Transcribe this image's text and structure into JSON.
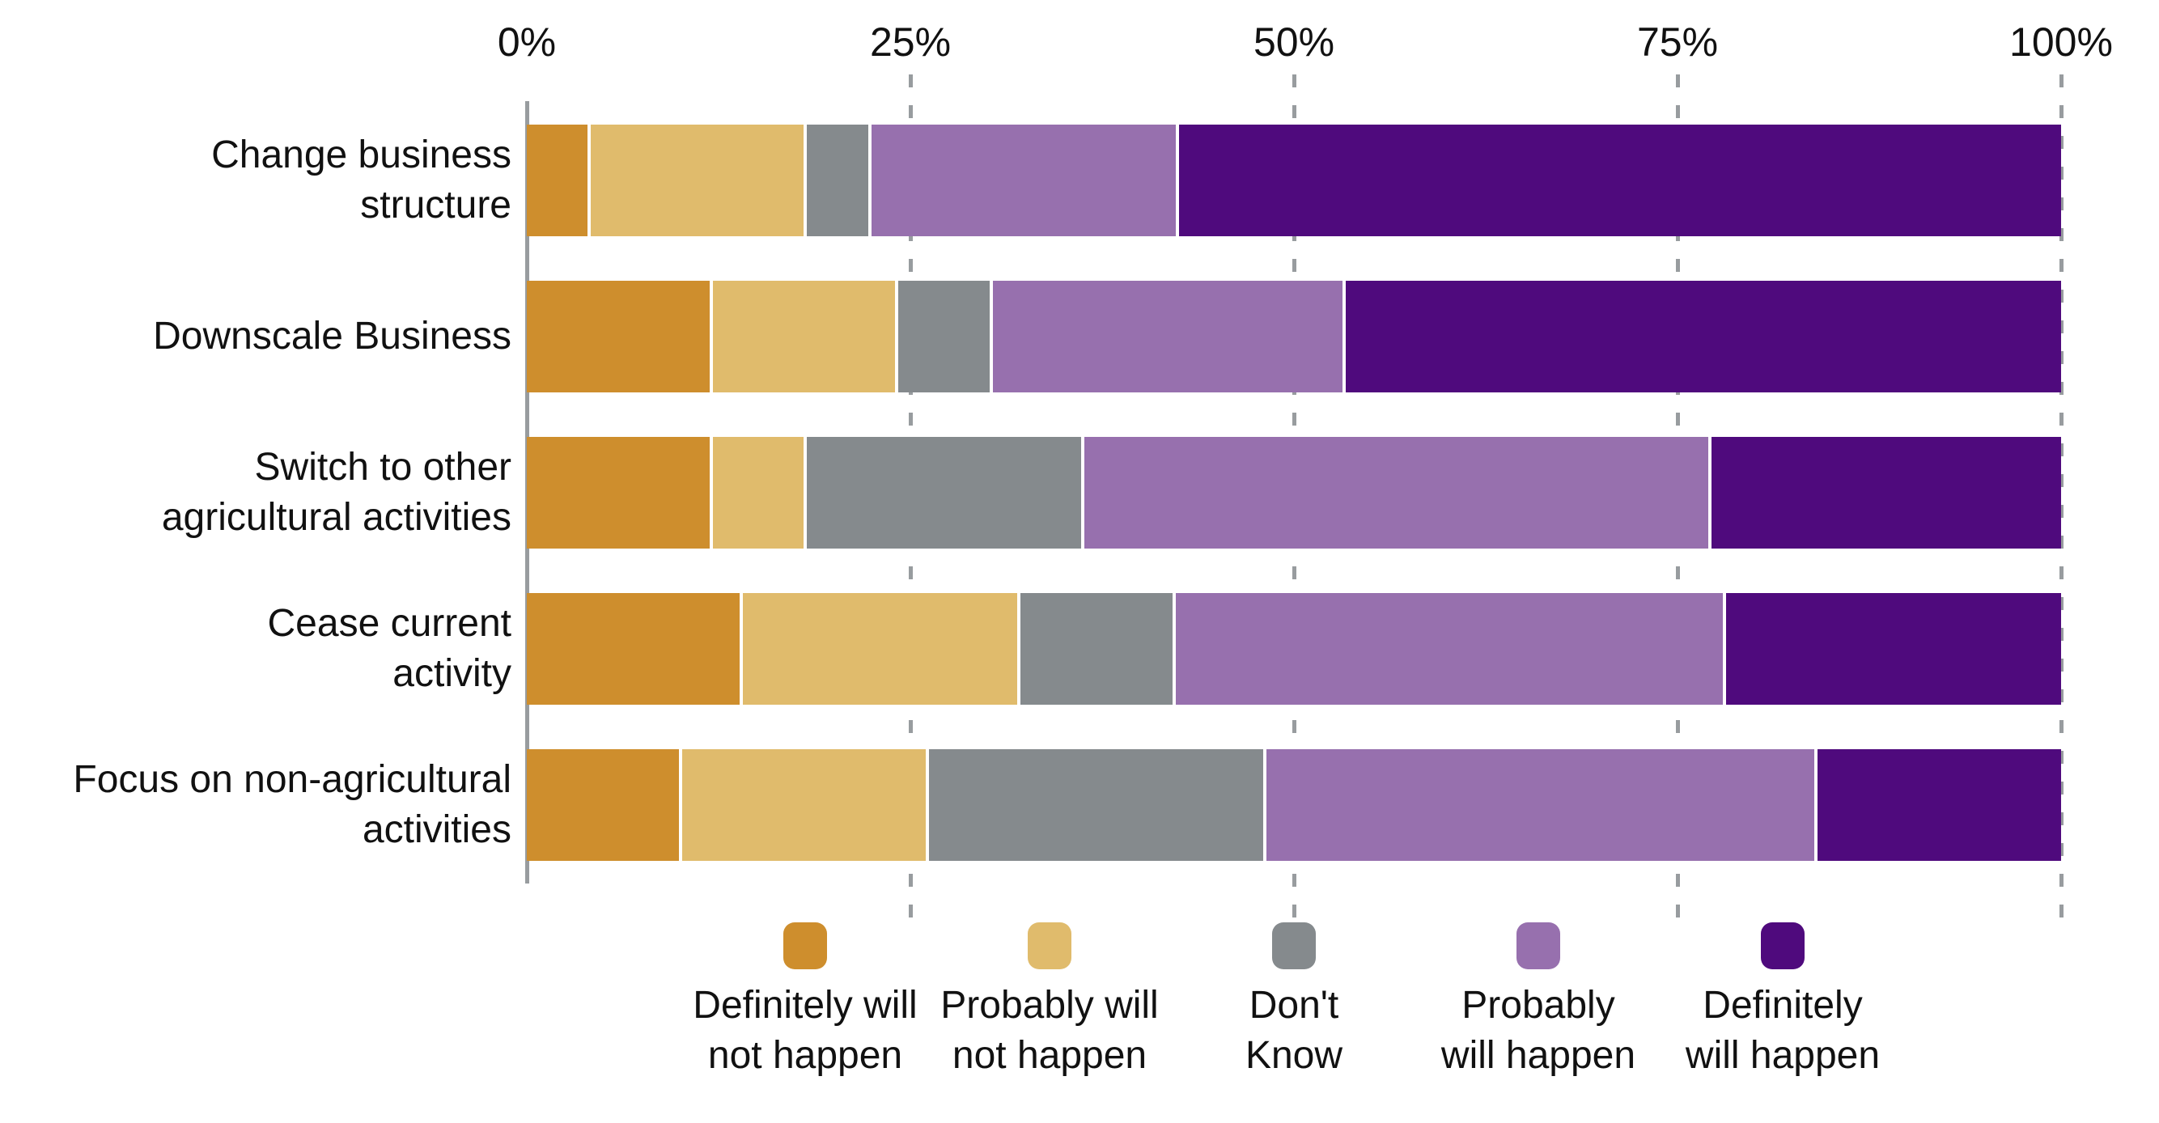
{
  "chart_data": {
    "type": "bar",
    "variant": "horizontal-stacked-100pct",
    "title": "",
    "xlabel": "",
    "ylabel": "",
    "xlim": [
      0,
      100
    ],
    "x_ticks": [
      {
        "label": "0%",
        "pct": 0
      },
      {
        "label": "25%",
        "pct": 25
      },
      {
        "label": "50%",
        "pct": 50
      },
      {
        "label": "75%",
        "pct": 75
      },
      {
        "label": "100%",
        "pct": 100
      }
    ],
    "grid": "dashed-vertical",
    "legend_position": "bottom",
    "categories": [
      "Change business structure",
      "Downscale Business",
      "Switch to other agricultural activities",
      "Cease current activity",
      "Focus on non-agricultural activities"
    ],
    "category_label_lines": [
      [
        "Change business",
        "structure"
      ],
      [
        "Downscale Business"
      ],
      [
        "Switch to other",
        "agricultural activities"
      ],
      [
        "Cease current",
        "activity"
      ],
      [
        "Focus on non-agricultural",
        "activities"
      ]
    ],
    "series": [
      {
        "name": "Definitely will not happen",
        "label_lines": [
          "Definitely will",
          "not happen"
        ],
        "color": "#CE8E2D",
        "values": [
          4,
          12,
          12,
          14,
          10
        ]
      },
      {
        "name": "Probably will not happen",
        "label_lines": [
          "Probably will",
          "not happen"
        ],
        "color": "#E0BB6C",
        "values": [
          14,
          12,
          6,
          18,
          16
        ]
      },
      {
        "name": "Don't Know",
        "label_lines": [
          "Don't",
          "Know"
        ],
        "color": "#858A8D",
        "values": [
          4,
          6,
          18,
          10,
          22
        ]
      },
      {
        "name": "Probably will happen",
        "label_lines": [
          "Probably",
          "will happen"
        ],
        "color": "#9770AE",
        "values": [
          20,
          23,
          41,
          36,
          36
        ]
      },
      {
        "name": "Definitely will happen",
        "label_lines": [
          "Definitely",
          "will happen"
        ],
        "color": "#4F0A7D",
        "values": [
          58,
          47,
          23,
          22,
          16
        ]
      }
    ]
  },
  "colors": {
    "background": "#FFFFFF",
    "gridline": "#989C9F",
    "text": "#111111"
  }
}
